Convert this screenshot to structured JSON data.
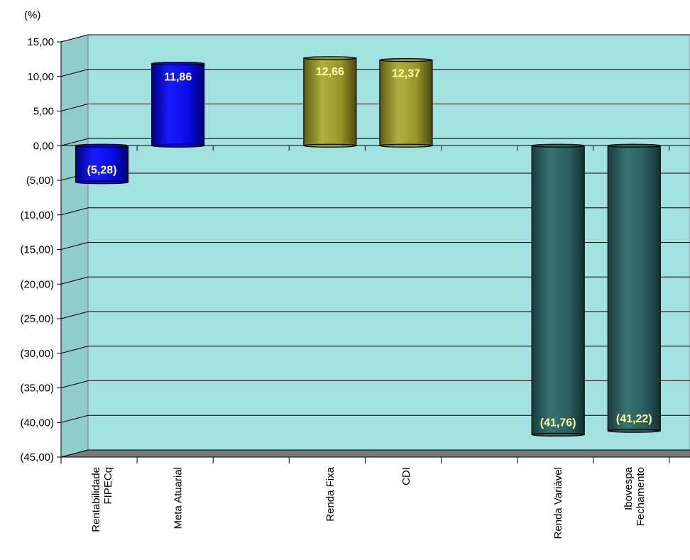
{
  "chart_data": {
    "type": "bar",
    "ylabel": "(%)",
    "ylim": [
      -45,
      15
    ],
    "yticks": [
      15,
      10,
      5,
      0,
      -5,
      -10,
      -15,
      -20,
      -25,
      -30,
      -35,
      -40,
      -45
    ],
    "ytick_labels": [
      "15,00",
      "10,00",
      "5,00",
      "0,00",
      "(5,00)",
      "(10,00)",
      "(15,00)",
      "(20,00)",
      "(25,00)",
      "(30,00)",
      "(35,00)",
      "(40,00)",
      "(45,00)"
    ],
    "grid": true,
    "background_color": "#a3e0e0",
    "bars": [
      {
        "label_lines": [
          "Rentabilidade",
          "FIPECq"
        ],
        "value": -5.28,
        "data_label": "(5,28)",
        "color": "#0a0ae6",
        "label_color": "#ffffff"
      },
      {
        "label_lines": [
          "Meta Atuarial"
        ],
        "value": 11.86,
        "data_label": "11,86",
        "color": "#0a0ae6",
        "label_color": "#ffffff"
      },
      {
        "label_lines": [
          "Renda Fixa"
        ],
        "value": 12.66,
        "data_label": "12,66",
        "color": "#9a9a2e",
        "label_color": "#ffffa8"
      },
      {
        "label_lines": [
          "CDI"
        ],
        "value": 12.37,
        "data_label": "12,37",
        "color": "#9a9a2e",
        "label_color": "#ffffa8"
      },
      {
        "label_lines": [
          "Renda Variável"
        ],
        "value": -41.76,
        "data_label": "(41,76)",
        "color": "#2e6262",
        "label_color": "#ffffa8"
      },
      {
        "label_lines": [
          "Ibovespa",
          "Fechamento"
        ],
        "value": -41.22,
        "data_label": "(41,22)",
        "color": "#2e6262",
        "label_color": "#ffffa8"
      }
    ]
  }
}
